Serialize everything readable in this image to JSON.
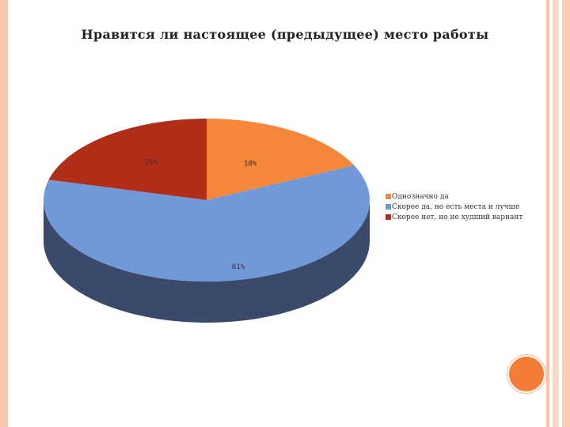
{
  "chart_data": {
    "type": "pie",
    "title": "Нравится ли настоящее (предыдущее) место работы",
    "legend_position": "right",
    "three_d": true,
    "slices": [
      {
        "name": "Однозначно да",
        "value": 18,
        "label": "18%",
        "color": "#f5873a",
        "side_color": "#a85a22"
      },
      {
        "name": "Скорее да, но есть места и лучше",
        "value": 61,
        "label": "61%",
        "color": "#7198d8",
        "side_color": "#3b4a6b"
      },
      {
        "name": "Скорее нет, но не худший вариант",
        "value": 21,
        "label": "21%",
        "color": "#b02e18",
        "side_color": "#6e1c0e"
      }
    ]
  },
  "decor": {
    "accent": "#f47c35",
    "border": "#f8c9b0"
  }
}
